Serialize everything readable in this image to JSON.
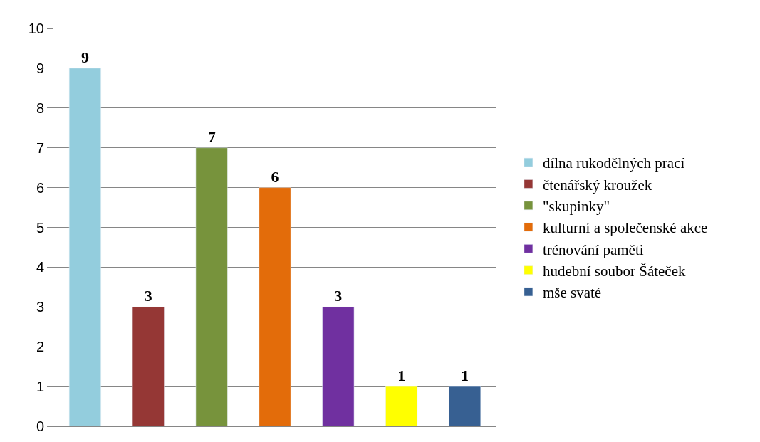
{
  "chart_data": {
    "type": "bar",
    "categories": [
      null,
      null,
      null,
      null,
      null,
      null,
      null
    ],
    "series": [
      {
        "name": "dílna rukodělných prací",
        "color": "#93cddd",
        "values": [
          9,
          null,
          null,
          null,
          null,
          null,
          null
        ]
      },
      {
        "name": "čtenářský kroužek",
        "color": "#953735",
        "values": [
          null,
          3,
          null,
          null,
          null,
          null,
          null
        ]
      },
      {
        "name": "\"skupinky\"",
        "color": "#77933c",
        "values": [
          null,
          null,
          7,
          null,
          null,
          null,
          null
        ]
      },
      {
        "name": "kulturní a společenské akce",
        "color": "#e36c0a",
        "values": [
          null,
          null,
          null,
          6,
          null,
          null,
          null
        ]
      },
      {
        "name": "trénování paměti",
        "color": "#7030a0",
        "values": [
          null,
          null,
          null,
          null,
          3,
          null,
          null
        ]
      },
      {
        "name": "hudební soubor Šáteček",
        "color": "#ffff00",
        "values": [
          null,
          null,
          null,
          null,
          null,
          1,
          null
        ]
      },
      {
        "name": "mše svaté",
        "color": "#376092",
        "values": [
          null,
          null,
          null,
          null,
          null,
          null,
          1
        ]
      }
    ],
    "ylim": [
      0,
      10
    ],
    "yticks": [
      0,
      1,
      2,
      3,
      4,
      5,
      6,
      7,
      8,
      9,
      10
    ],
    "grid": "y",
    "legend": "right",
    "data_labels": true
  }
}
